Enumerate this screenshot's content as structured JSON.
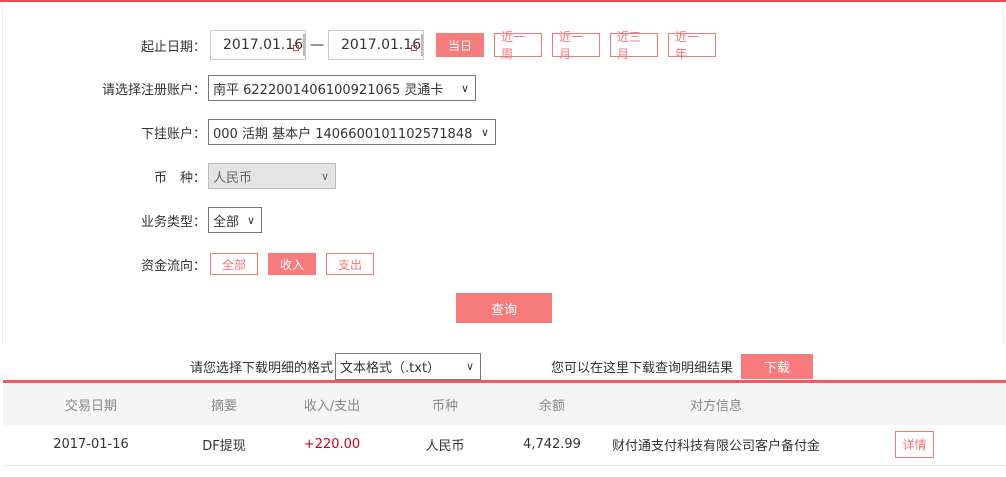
{
  "filters": {
    "date_label": "起止日期：",
    "start_date": "2017.01.16",
    "separator": "—",
    "end_date": "2017.01.16",
    "quick_ranges": [
      {
        "label": "当日",
        "active": true
      },
      {
        "label": "近一周",
        "active": false
      },
      {
        "label": "近一月",
        "active": false
      },
      {
        "label": "近三月",
        "active": false
      },
      {
        "label": "近一年",
        "active": false
      }
    ],
    "account_label": "请选择注册账户：",
    "account_value": "南平 6222001406100921065 灵通卡",
    "sub_account_label": "下挂账户：",
    "sub_account_value": "000 活期 基本户 1406600101102571848",
    "currency_label": "币　种：",
    "currency_value": "人民币",
    "type_label": "业务类型：",
    "type_value": "全部",
    "flow_label": "资金流向：",
    "flows": [
      {
        "label": "全部",
        "active": false
      },
      {
        "label": "收入",
        "active": true
      },
      {
        "label": "支出",
        "active": false
      }
    ],
    "query_label": "查询"
  },
  "download": {
    "format_label": "请您选择下载明细的格式",
    "format_value": "文本格式（.txt）",
    "hint": "您可以在这里下载查询明细结果",
    "button": "下载"
  },
  "table": {
    "headers": [
      "交易日期",
      "摘要",
      "收入/支出",
      "币种",
      "余额",
      "对方信息",
      ""
    ],
    "rows": [
      {
        "date": "2017-01-16",
        "summary": "DF提现",
        "amount": "+220.00",
        "currency": "人民币",
        "balance": "4,742.99",
        "counterparty": "财付通支付科技有限公司客户备付金",
        "action": "详情"
      }
    ]
  },
  "colors": {
    "accent": "#f77b7b",
    "income": "#d0021b",
    "line": "#f05a5a"
  }
}
